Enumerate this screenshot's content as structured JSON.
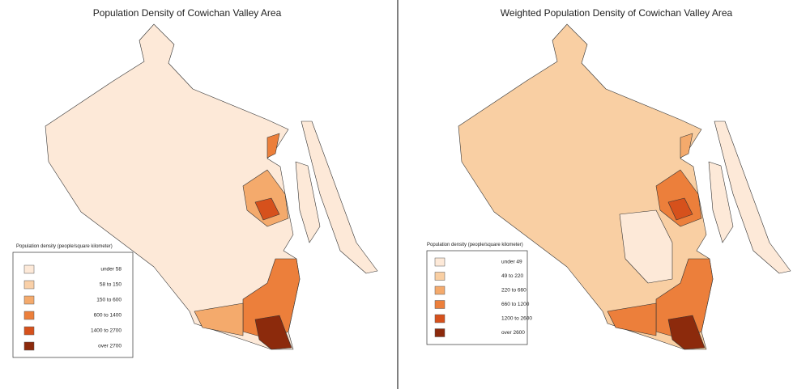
{
  "panels": [
    {
      "title": "Population Density of Cowichan Valley Area",
      "legend": {
        "title": "Population density (people/square kilometer)",
        "items": [
          {
            "label": "under 58",
            "color": "#fde9d8"
          },
          {
            "label": "58 to 150",
            "color": "#f9d0a8"
          },
          {
            "label": "150 to 600",
            "color": "#f4aa6c"
          },
          {
            "label": "600 to 1400",
            "color": "#ec7f3b"
          },
          {
            "label": "1400 to 2700",
            "color": "#d6511c"
          },
          {
            "label": "over 2700",
            "color": "#8c2a0c"
          }
        ]
      }
    },
    {
      "title": "Weighted Population Density of Cowichan Valley Area",
      "legend": {
        "title": "Population density (people/square kilometer)",
        "items": [
          {
            "label": "under 49",
            "color": "#fde9d8"
          },
          {
            "label": "49 to 220",
            "color": "#f9cfa3"
          },
          {
            "label": "220 to 660",
            "color": "#f4aa6c"
          },
          {
            "label": "660 to 1200",
            "color": "#ec7f3b"
          },
          {
            "label": "1200 to 2600",
            "color": "#d6511c"
          },
          {
            "label": "over 2600",
            "color": "#8c2a0c"
          }
        ]
      }
    }
  ]
}
